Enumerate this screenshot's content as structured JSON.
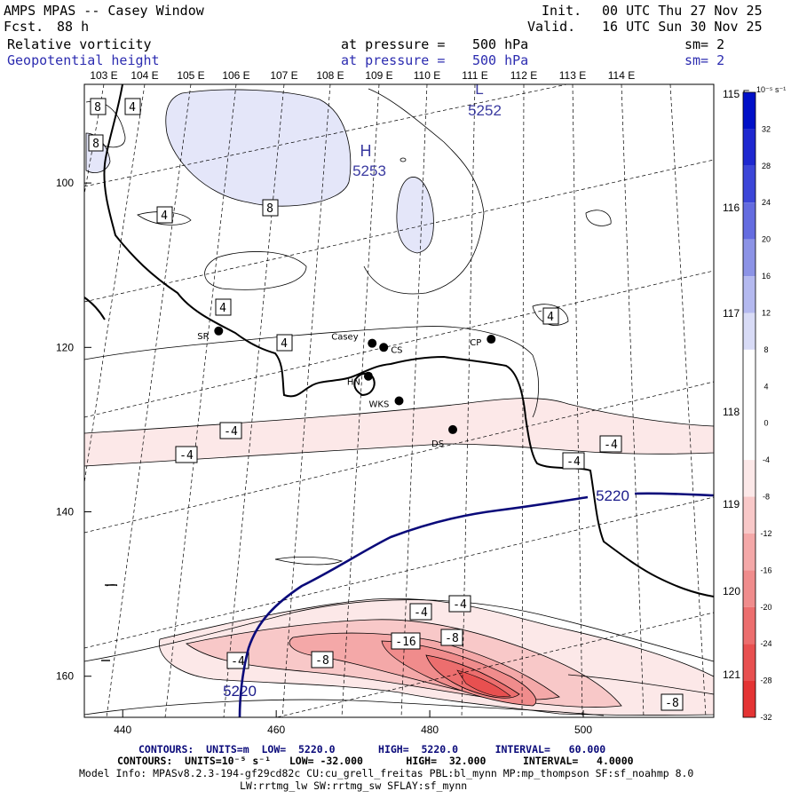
{
  "header": {
    "title": "AMPS MPAS -- Casey Window",
    "fcst_label": "Fcst.",
    "fcst_value": "88 h",
    "init_label": "Init.",
    "init_value": "00 UTC Thu 27 Nov 25",
    "valid_label": "Valid.",
    "valid_value": "16 UTC Sun 30 Nov 25",
    "field1": "Relative vorticity",
    "field2": "Geopotential height",
    "pressure1_label": "at pressure =",
    "pressure1_value": "500 hPa",
    "pressure2_label": "at pressure =",
    "pressure2_value": "500 hPa",
    "sm1": "sm= 2",
    "sm2": "sm= 2"
  },
  "colors": {
    "height_contour": "#0a0a7a",
    "positive_fill": "#e4e6f9",
    "neg_fills": [
      "#fce8e8",
      "#f8c8c8",
      "#f4a8a8",
      "#f08c8c",
      "#ec6e6e",
      "#e85050",
      "#e43434"
    ],
    "pos_fills": [
      "#d8dbf6",
      "#b4b9ef",
      "#8c93e6",
      "#646ce0",
      "#3c46d8",
      "#1e28d0",
      "#0010c8"
    ]
  },
  "chart_data": {
    "type": "contour-map",
    "title": "Relative vorticity and Geopotential height at 500 hPa",
    "x_axis": {
      "ticks": [
        440,
        460,
        480,
        500
      ],
      "range": [
        435,
        517
      ]
    },
    "y_axis": {
      "ticks": [
        100,
        120,
        140,
        160
      ],
      "range": [
        165,
        88
      ],
      "inverted": true
    },
    "longitude_top": [
      "103 E",
      "104 E",
      "105 E",
      "106 E",
      "107 E",
      "108 E",
      "109 E",
      "110 E",
      "111 E",
      "112 E",
      "113 E",
      "114 E"
    ],
    "longitude_right": [
      "115 E",
      "116 E",
      "117 E",
      "118 E",
      "119 E",
      "120 E",
      "121 E"
    ],
    "colorbar": {
      "unit": "10⁻⁵ s⁻¹",
      "levels": [
        32,
        28,
        24,
        20,
        16,
        12,
        8,
        4,
        0,
        -4,
        -8,
        -12,
        -16,
        -20,
        -24,
        -28,
        -32
      ]
    },
    "vorticity_labels": [
      "8",
      "4",
      "8",
      "4",
      "8",
      "4",
      "4",
      "4",
      "-4",
      "-4",
      "-4",
      "-4",
      "-4",
      "-4",
      "-16",
      "-8",
      "-4",
      "-8",
      "-8"
    ],
    "height_centers": [
      {
        "type": "H",
        "value": "5253",
        "x": 472,
        "y": 95
      },
      {
        "type": "L",
        "value": "5252",
        "x": 484,
        "y": 89
      }
    ],
    "height_contour_label": "5220",
    "height_contour_label2": "5220",
    "stations": [
      {
        "name": "SR",
        "x": 452.5,
        "y": 118
      },
      {
        "name": "Casey",
        "x": 472.5,
        "y": 119.5
      },
      {
        "name": "CS",
        "x": 474,
        "y": 120
      },
      {
        "name": "CP",
        "x": 488,
        "y": 119
      },
      {
        "name": "HN",
        "x": 472,
        "y": 123.5
      },
      {
        "name": "WKS",
        "x": 476,
        "y": 126.5
      },
      {
        "name": "DS",
        "x": 483,
        "y": 130
      }
    ]
  },
  "footer": {
    "line1": "CONTOURS:  UNITS=m  LOW=  5220.0       HIGH=  5220.0      INTERVAL=   60.000",
    "line2": "CONTOURS:  UNITS=10⁻⁵ s⁻¹   LOW= -32.000       HIGH=  32.000      INTERVAL=   4.0000",
    "line3": "Model Info: MPASv8.2.3-194-gf29cd82c CU:cu_grell_freitas PBL:bl_mynn MP:mp_thompson SF:sf_noahmp 8.0",
    "line4": "LW:rrtmg_lw SW:rrtmg_sw SFLAY:sf_mynn"
  }
}
